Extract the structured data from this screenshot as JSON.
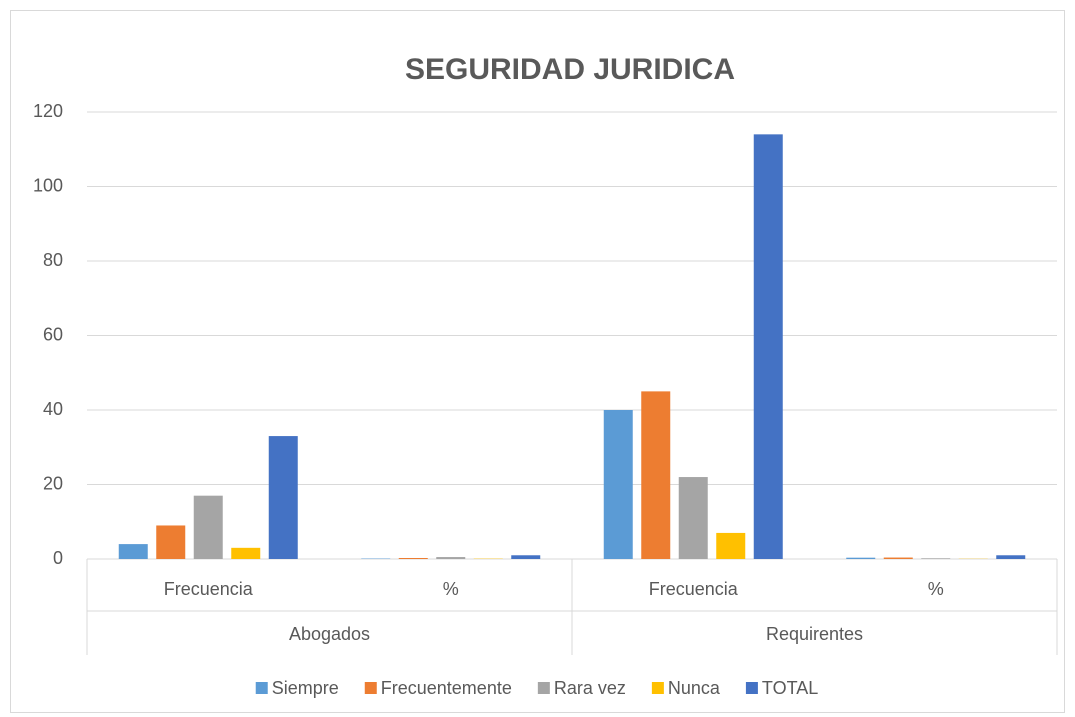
{
  "chart_data": {
    "type": "bar",
    "title": "SEGURIDAD JURIDICA",
    "categories": [
      "Frecuencia",
      "%",
      "Frecuencia",
      "%"
    ],
    "groups": [
      "Abogados",
      "Requirentes"
    ],
    "series": [
      {
        "name": "Siempre",
        "color": "#5b9bd5",
        "values": [
          4,
          0.12,
          40,
          0.35
        ]
      },
      {
        "name": "Frecuentemente",
        "color": "#ed7d31",
        "values": [
          9,
          0.27,
          45,
          0.39
        ]
      },
      {
        "name": "Rara vez",
        "color": "#a5a5a5",
        "values": [
          17,
          0.52,
          22,
          0.19
        ]
      },
      {
        "name": "Nunca",
        "color": "#ffc000",
        "values": [
          3,
          0.09,
          7,
          0.06
        ]
      },
      {
        "name": "TOTAL",
        "color": "#4472c4",
        "values": [
          33,
          1,
          114,
          1
        ]
      }
    ],
    "ylim": [
      0,
      120
    ],
    "yticks": [
      0,
      20,
      40,
      60,
      80,
      100,
      120
    ],
    "grid": true,
    "legend": "bottom"
  }
}
